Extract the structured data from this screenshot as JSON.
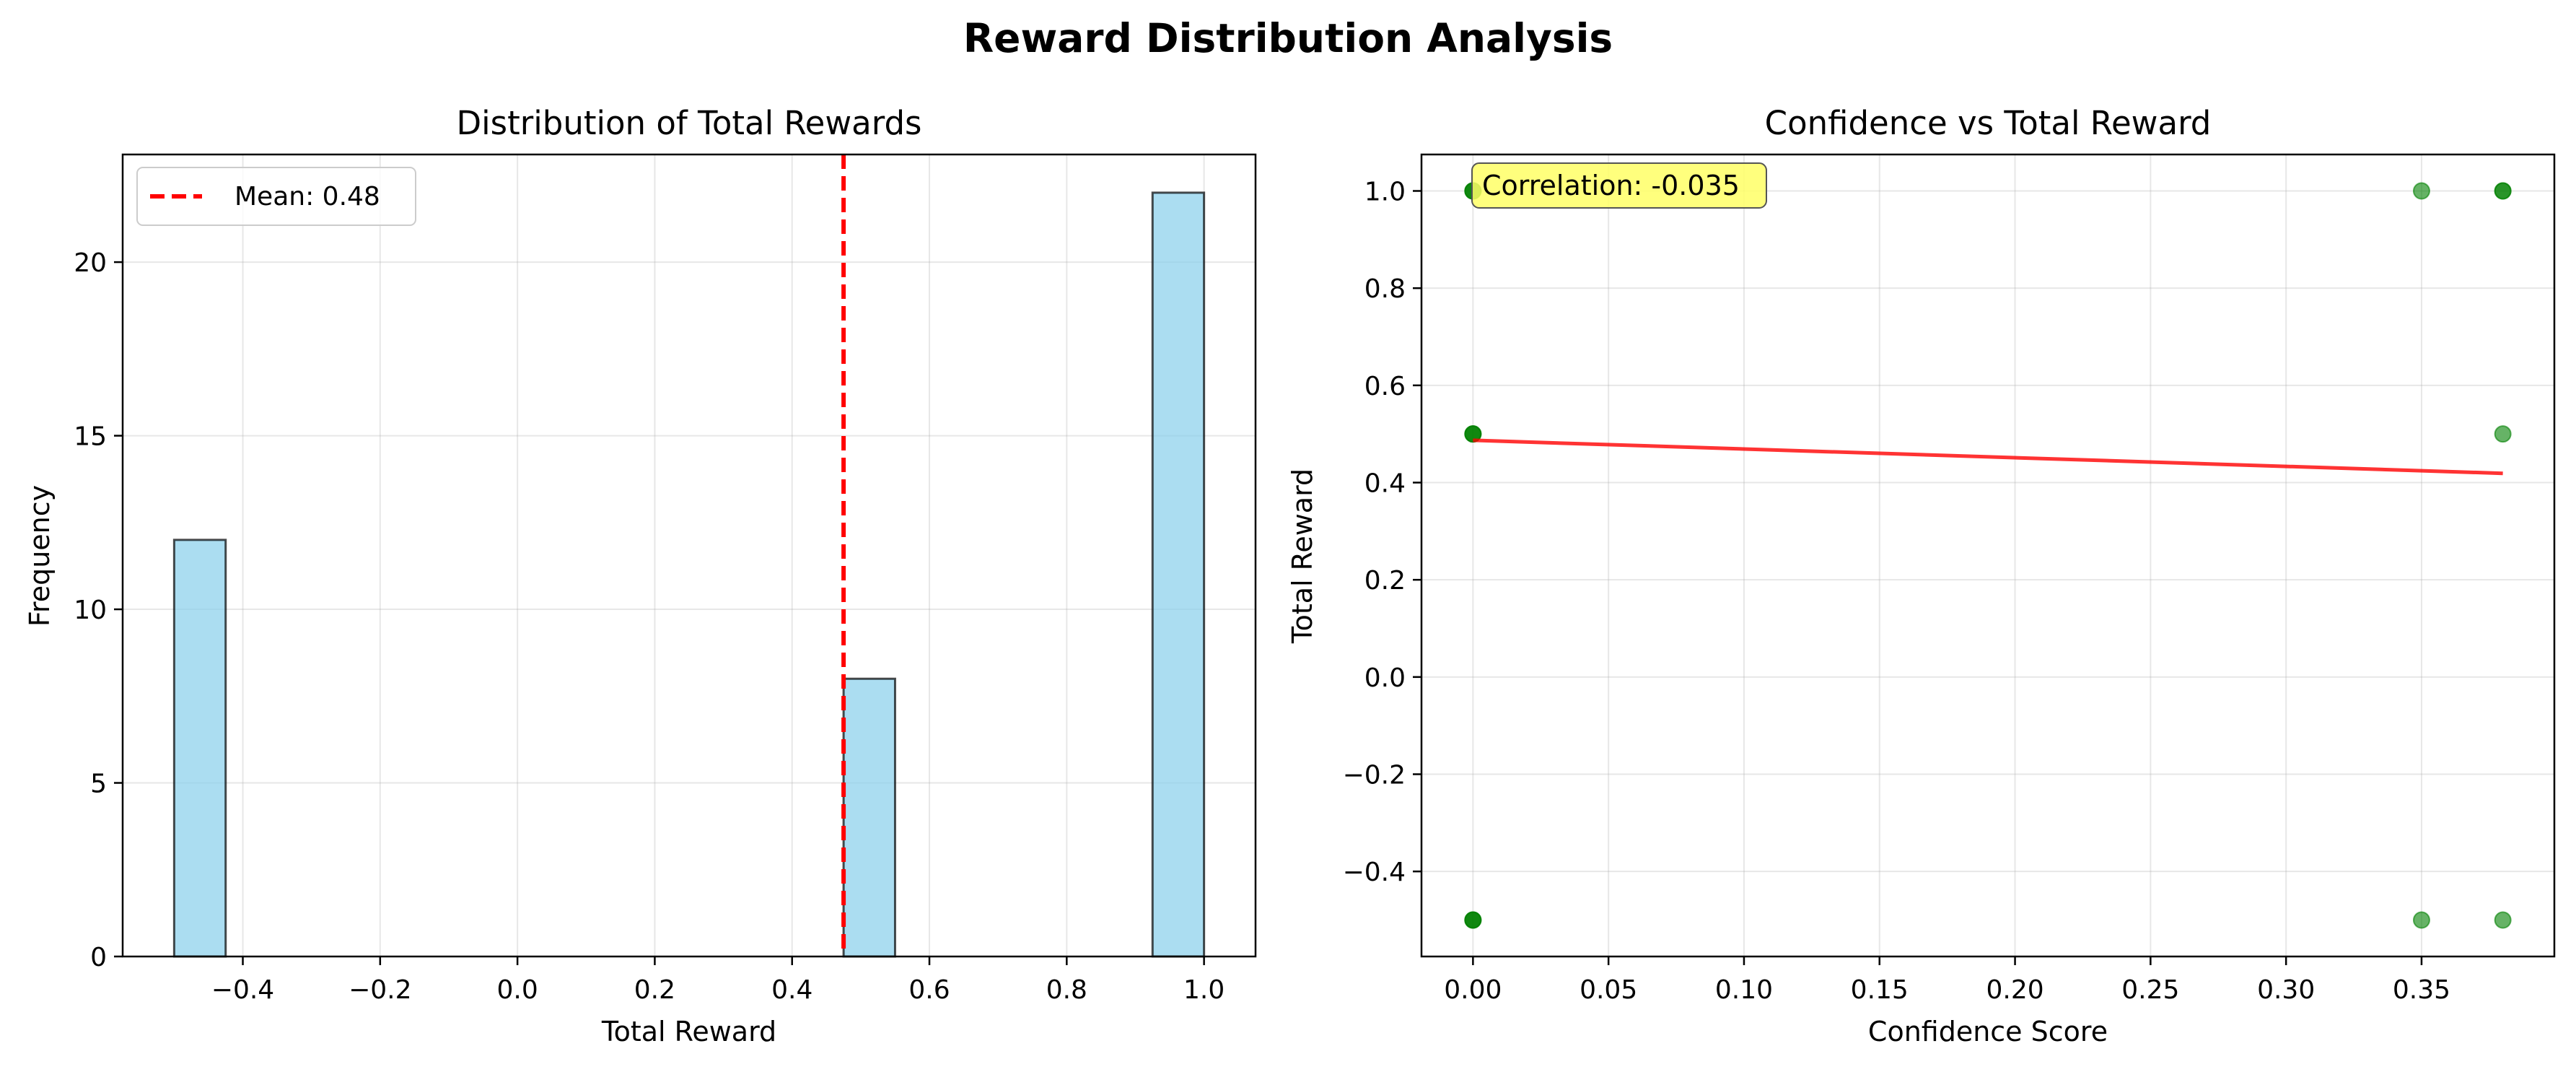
{
  "figure": {
    "suptitle": "Reward Distribution Analysis"
  },
  "chart_data": [
    {
      "type": "bar",
      "subtype": "histogram",
      "title": "Distribution of Total Rewards",
      "xlabel": "Total Reward",
      "ylabel": "Frequency",
      "xlim": [
        -0.575,
        1.075
      ],
      "ylim": [
        0,
        23.1
      ],
      "xticks": [
        -0.4,
        -0.2,
        0.0,
        0.2,
        0.4,
        0.6,
        0.8,
        1.0
      ],
      "xtick_labels": [
        "−0.4",
        "−0.2",
        "0.0",
        "0.2",
        "0.4",
        "0.6",
        "0.8",
        "1.0"
      ],
      "yticks": [
        0,
        5,
        10,
        15,
        20
      ],
      "ytick_labels": [
        "0",
        "5",
        "10",
        "15",
        "20"
      ],
      "bins": [
        {
          "x0": -0.5,
          "x1": -0.425,
          "count": 12
        },
        {
          "x0": 0.475,
          "x1": 0.55,
          "count": 8
        },
        {
          "x0": 0.925,
          "x1": 1.0,
          "count": 22
        }
      ],
      "bar_color": "#87ceeb",
      "bar_edge": "#000000",
      "mean_line": {
        "x": 0.475,
        "label": "Mean: 0.48",
        "color": "#ff0000"
      },
      "grid": true,
      "legend_position": "upper-left"
    },
    {
      "type": "scatter",
      "title": "Confidence vs Total Reward",
      "xlabel": "Confidence Score",
      "ylabel": "Total Reward",
      "xlim": [
        -0.019,
        0.399
      ],
      "ylim": [
        -0.575,
        1.075
      ],
      "xticks": [
        0.0,
        0.05,
        0.1,
        0.15,
        0.2,
        0.25,
        0.3,
        0.35
      ],
      "xtick_labels": [
        "0.00",
        "0.05",
        "0.10",
        "0.15",
        "0.20",
        "0.25",
        "0.30",
        "0.35"
      ],
      "yticks": [
        -0.4,
        -0.2,
        0.0,
        0.2,
        0.4,
        0.6,
        0.8,
        1.0
      ],
      "ytick_labels": [
        "−0.4",
        "−0.2",
        "0.0",
        "0.2",
        "0.4",
        "0.6",
        "0.8",
        "1.0"
      ],
      "points": [
        {
          "x": 0.0,
          "y": 1.0
        },
        {
          "x": 0.0,
          "y": 1.0
        },
        {
          "x": 0.0,
          "y": 1.0
        },
        {
          "x": 0.0,
          "y": 0.5
        },
        {
          "x": 0.0,
          "y": 0.5
        },
        {
          "x": 0.0,
          "y": 0.5
        },
        {
          "x": 0.0,
          "y": -0.5
        },
        {
          "x": 0.0,
          "y": -0.5
        },
        {
          "x": 0.0,
          "y": -0.5
        },
        {
          "x": 0.35,
          "y": 1.0
        },
        {
          "x": 0.35,
          "y": -0.5
        },
        {
          "x": 0.38,
          "y": 1.0
        },
        {
          "x": 0.38,
          "y": 1.0
        },
        {
          "x": 0.38,
          "y": 0.5
        },
        {
          "x": 0.38,
          "y": -0.5
        }
      ],
      "point_color": "#008000",
      "trend_line": {
        "x": [
          0.0,
          0.38
        ],
        "y": [
          0.487,
          0.419
        ],
        "color": "#ff0000"
      },
      "annotation": {
        "text": "Correlation: -0.035",
        "bg": "#ffff66"
      },
      "grid": true
    }
  ]
}
